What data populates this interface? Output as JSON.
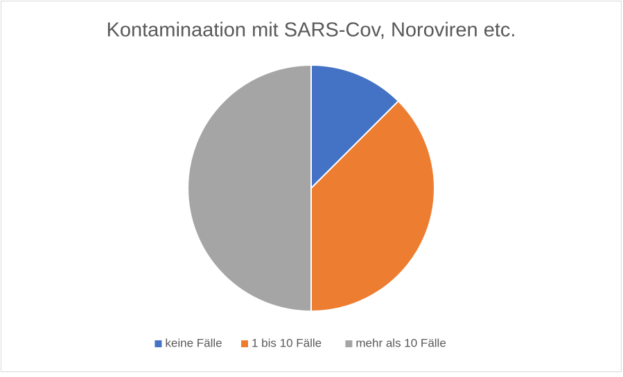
{
  "chart_data": {
    "type": "pie",
    "title": "Kontaminaation mit SARS-Cov, Noroviren etc.",
    "categories": [
      "keine Fälle",
      "1 bis 10 Fälle",
      "mehr als 10 Fälle"
    ],
    "values": [
      12.5,
      37.5,
      50
    ],
    "colors": [
      "#4472c4",
      "#ed7d31",
      "#a5a5a5"
    ],
    "legend": "bottom"
  }
}
